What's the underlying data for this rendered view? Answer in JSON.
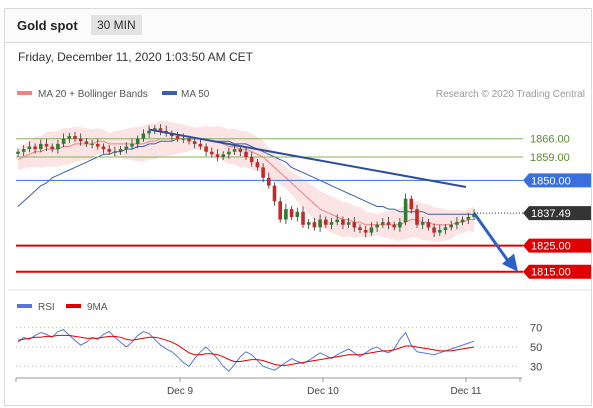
{
  "header": {
    "title": "Gold spot",
    "timeframe": "30 MIN",
    "date": "Friday, December 11, 2020 1:03:50 AM CET"
  },
  "legend": {
    "items": [
      {
        "label": "MA 20 + Bollinger Bands",
        "color": "#f08080"
      },
      {
        "label": "MA 50",
        "color": "#3a5fa8"
      }
    ],
    "credit": "Research © 2020 Trading Central"
  },
  "rsi_legend": {
    "items": [
      {
        "label": "RSI",
        "color": "#5577dd"
      },
      {
        "label": "9MA",
        "color": "#e00000"
      }
    ]
  },
  "chart_data": [
    {
      "type": "candlestick",
      "ylim": [
        1808,
        1877
      ],
      "x_labels": [
        "Dec 9",
        "Dec 10",
        "Dec 11"
      ],
      "current_price": "1837.49",
      "levels": [
        {
          "value": 1866.0,
          "label": "1866.00",
          "style": "target-line",
          "color": "#88b060"
        },
        {
          "value": 1859.0,
          "label": "1859.00",
          "style": "target-line",
          "color": "#88b060"
        },
        {
          "value": 1850.0,
          "label": "1850.00",
          "style": "pivot",
          "color": "#3b6fe0"
        },
        {
          "value": 1825.0,
          "label": "1825.00",
          "style": "support",
          "color": "#e00000"
        },
        {
          "value": 1815.0,
          "label": "1815.00",
          "style": "support",
          "color": "#e00000"
        }
      ],
      "close_series": [
        1861,
        1862,
        1863,
        1862,
        1864,
        1863,
        1862,
        1864,
        1866,
        1867,
        1866,
        1865,
        1864,
        1864,
        1863,
        1862,
        1861,
        1861,
        1862,
        1863,
        1864,
        1866,
        1868,
        1869,
        1870,
        1869,
        1868,
        1867,
        1866,
        1866,
        1865,
        1864,
        1863,
        1861,
        1860,
        1859,
        1860,
        1861,
        1862,
        1861,
        1859,
        1857,
        1855,
        1851,
        1848,
        1842,
        1835,
        1839,
        1836,
        1838,
        1833,
        1834,
        1832,
        1835,
        1833,
        1834,
        1835,
        1833,
        1834,
        1832,
        1831,
        1830,
        1832,
        1833,
        1834,
        1833,
        1832,
        1834,
        1843,
        1839,
        1833,
        1834,
        1832,
        1830,
        1831,
        1832,
        1833,
        1834,
        1835,
        1836,
        1837
      ],
      "ma20": [
        1858,
        1859,
        1860,
        1861,
        1861,
        1862,
        1862,
        1862,
        1863,
        1863,
        1864,
        1864,
        1864,
        1864,
        1865,
        1865,
        1864,
        1864,
        1864,
        1864,
        1864,
        1864,
        1864,
        1865,
        1865,
        1866,
        1866,
        1866,
        1866,
        1866,
        1866,
        1866,
        1866,
        1866,
        1865,
        1865,
        1864,
        1863,
        1863,
        1862,
        1862,
        1861,
        1860,
        1859,
        1857,
        1855,
        1853,
        1851,
        1849,
        1847,
        1845,
        1843,
        1841,
        1839,
        1838,
        1837,
        1836,
        1835,
        1835,
        1834,
        1834,
        1833,
        1833,
        1833,
        1833,
        1833,
        1833,
        1833,
        1834,
        1835,
        1835,
        1834,
        1834,
        1833,
        1833,
        1833,
        1833,
        1834,
        1834,
        1835,
        1835
      ],
      "ma50": [
        1840,
        1842,
        1844,
        1846,
        1848,
        1849,
        1851,
        1852,
        1853,
        1854,
        1855,
        1856,
        1857,
        1858,
        1859,
        1860,
        1860,
        1861,
        1861,
        1862,
        1862,
        1863,
        1863,
        1864,
        1864,
        1865,
        1865,
        1865,
        1866,
        1866,
        1866,
        1866,
        1866,
        1866,
        1865,
        1865,
        1865,
        1865,
        1864,
        1864,
        1864,
        1863,
        1862,
        1861,
        1860,
        1859,
        1858,
        1857,
        1855,
        1854,
        1853,
        1852,
        1851,
        1850,
        1849,
        1848,
        1847,
        1846,
        1845,
        1844,
        1843,
        1842,
        1841,
        1840,
        1840,
        1839,
        1839,
        1838,
        1838,
        1838,
        1838,
        1838,
        1837,
        1837,
        1837,
        1837,
        1837,
        1837,
        1837,
        1837,
        1837
      ]
    },
    {
      "type": "line",
      "title": "RSI",
      "ylim": [
        20,
        80
      ],
      "y_ticks": [
        "70",
        "50",
        "30"
      ],
      "series": [
        {
          "name": "RSI",
          "values": [
            55,
            60,
            58,
            62,
            65,
            63,
            60,
            66,
            68,
            62,
            57,
            52,
            55,
            60,
            58,
            63,
            66,
            60,
            55,
            50,
            55,
            62,
            66,
            64,
            58,
            52,
            48,
            45,
            40,
            34,
            30,
            38,
            45,
            50,
            44,
            38,
            30,
            25,
            32,
            40,
            45,
            42,
            36,
            30,
            28,
            26,
            30,
            34,
            38,
            35,
            33,
            36,
            40,
            44,
            41,
            38,
            42,
            45,
            48,
            44,
            40,
            44,
            48,
            50,
            46,
            44,
            48,
            58,
            65,
            52,
            45,
            44,
            43,
            42,
            44,
            46,
            48,
            50,
            52,
            54,
            56
          ]
        },
        {
          "name": "9MA",
          "values": [
            57,
            58,
            59,
            60,
            60,
            61,
            61,
            62,
            62,
            62,
            61,
            60,
            59,
            59,
            59,
            60,
            61,
            61,
            60,
            58,
            57,
            58,
            59,
            60,
            60,
            59,
            57,
            55,
            52,
            48,
            44,
            42,
            42,
            43,
            43,
            42,
            40,
            37,
            35,
            35,
            36,
            37,
            37,
            36,
            34,
            32,
            31,
            31,
            32,
            33,
            34,
            35,
            36,
            37,
            38,
            39,
            40,
            41,
            42,
            42,
            42,
            43,
            44,
            45,
            46,
            46,
            47,
            49,
            51,
            51,
            50,
            49,
            48,
            47,
            46,
            46,
            46,
            47,
            48,
            49,
            50
          ]
        }
      ]
    }
  ]
}
